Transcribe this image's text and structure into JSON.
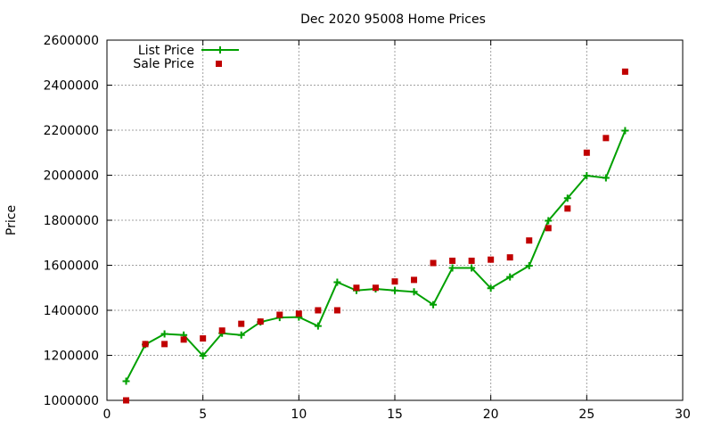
{
  "chart_data": {
    "type": "line",
    "title": "Dec 2020 95008 Home Prices",
    "xlabel": "",
    "ylabel": "Price",
    "xlim": [
      0,
      30
    ],
    "ylim": [
      1000000,
      2600000
    ],
    "xticks": [
      "0",
      "5",
      "10",
      "15",
      "20",
      "25",
      "30"
    ],
    "yticks": [
      "1000000",
      "1200000",
      "1400000",
      "1600000",
      "1800000",
      "2000000",
      "2200000",
      "2400000",
      "2600000"
    ],
    "grid": true,
    "legend_position": "top-left",
    "series": [
      {
        "name": "List Price",
        "style": "line-points",
        "color": "#00a000",
        "x": [
          1,
          2,
          3,
          4,
          5,
          6,
          7,
          8,
          9,
          10,
          11,
          12,
          13,
          14,
          15,
          16,
          17,
          18,
          19,
          20,
          21,
          22,
          23,
          24,
          25,
          26,
          27
        ],
        "y": [
          1085000,
          1248000,
          1295000,
          1290000,
          1198000,
          1298000,
          1290000,
          1348000,
          1368000,
          1370000,
          1330000,
          1525000,
          1488000,
          1495000,
          1488000,
          1482000,
          1425000,
          1588000,
          1588000,
          1498000,
          1548000,
          1598000,
          1798000,
          1898000,
          1998000,
          1988000,
          2198000
        ]
      },
      {
        "name": "Sale Price",
        "style": "points",
        "color": "#c00000",
        "x": [
          1,
          2,
          3,
          4,
          5,
          6,
          7,
          8,
          9,
          10,
          11,
          12,
          13,
          14,
          15,
          16,
          17,
          18,
          19,
          20,
          21,
          22,
          23,
          24,
          25,
          26,
          27
        ],
        "y": [
          1000000,
          1250000,
          1250000,
          1270000,
          1275000,
          1310000,
          1340000,
          1350000,
          1380000,
          1385000,
          1400000,
          1400000,
          1500000,
          1500000,
          1528000,
          1535000,
          1610000,
          1620000,
          1620000,
          1625000,
          1635000,
          1710000,
          1765000,
          1852000,
          2100000,
          2165000,
          2460000
        ]
      }
    ]
  }
}
